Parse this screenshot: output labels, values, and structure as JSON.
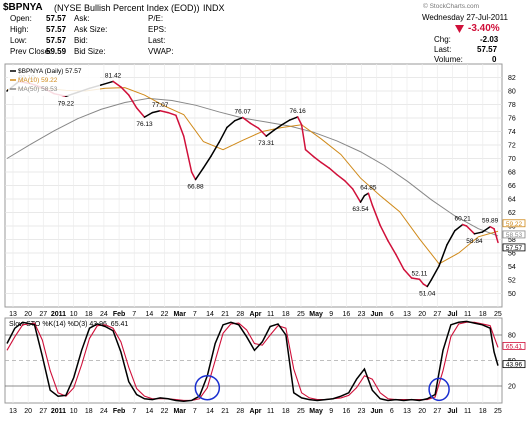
{
  "chart_data": [
    {
      "type": "line",
      "symbol": "$BPNYA",
      "title": "(NYSE Bullish Percent Index (EOD))",
      "exchange": "INDX",
      "watermark": "© StockCharts.com",
      "date_text": "Wednesday 27-Jul-2011",
      "quote": {
        "open_label": "Open:",
        "open": "57.57",
        "high_label": "High:",
        "high": "57.57",
        "low_label": "Low:",
        "low": "57.57",
        "prev_label": "Prev Close:",
        "prev": "59.59",
        "ask_label": "Ask:",
        "ask": "",
        "asksize_label": "Ask Size:",
        "asksize": "",
        "bid_label": "Bid:",
        "bid": "",
        "bidsize_label": "Bid Size:",
        "bidsize": "",
        "pe_label": "P/E:",
        "pe": "",
        "eps_label": "EPS:",
        "eps": "",
        "last_label": "Last:",
        "last": "",
        "vwap_label": "VWAP:",
        "vwap": "",
        "pct_change": "-3.40%",
        "chg_label": "Chg:",
        "chg": "-2.03",
        "last2_label": "Last:",
        "last2": "57.57",
        "volume_label": "Volume:",
        "volume": "0"
      },
      "legend": [
        {
          "text": "$BPNYA (Daily) 57.57",
          "color": "#000000"
        },
        {
          "text": "MA(10) 59.22",
          "color": "#d08a1a"
        },
        {
          "text": "MA(50) 58.53",
          "color": "#888888"
        }
      ],
      "ylim": [
        48,
        84
      ],
      "yticks": [
        50,
        52,
        54,
        56,
        58,
        60,
        62,
        64,
        66,
        68,
        70,
        72,
        74,
        76,
        78,
        80,
        82
      ],
      "x_tick_labels": [
        "13",
        "20",
        "27",
        "2011",
        "10",
        "18",
        "24",
        "Feb",
        "7",
        "14",
        "22",
        "Mar",
        "7",
        "14",
        "21",
        "28",
        "Apr",
        "11",
        "18",
        "25",
        "May",
        "9",
        "16",
        "23",
        "Jun",
        "6",
        "13",
        "20",
        "27",
        "Jul",
        "11",
        "18",
        "25"
      ],
      "right_labels": [
        "59.22",
        "58.53",
        "57.57"
      ],
      "series": [
        {
          "name": "$BPNYA (Daily) 57.57",
          "color": "#000000",
          "down_color": "#d0103a",
          "values": [
            [
              0,
              80
            ],
            [
              3,
              81.4
            ],
            [
              6,
              81.1
            ],
            [
              9,
              80.5
            ],
            [
              12,
              79.6
            ],
            [
              15,
              79.22
            ],
            [
              18,
              79.8
            ],
            [
              21,
              80.4
            ],
            [
              24,
              80.9
            ],
            [
              27,
              81.42
            ],
            [
              29,
              80.6
            ],
            [
              31,
              79.4
            ],
            [
              33,
              77.5
            ],
            [
              35,
              76.13
            ],
            [
              37,
              76.8
            ],
            [
              39,
              77.07
            ],
            [
              41,
              76.8
            ],
            [
              43,
              76.4
            ],
            [
              45,
              73.3
            ],
            [
              47,
              68.0
            ],
            [
              48,
              66.88
            ],
            [
              50,
              68.6
            ],
            [
              52,
              70.4
            ],
            [
              54,
              72.4
            ],
            [
              56,
              74.6
            ],
            [
              58,
              75.6
            ],
            [
              60,
              76.07
            ],
            [
              62,
              75.2
            ],
            [
              64,
              74.5
            ],
            [
              66,
              73.31
            ],
            [
              68,
              74.2
            ],
            [
              70,
              75.0
            ],
            [
              72,
              75.7
            ],
            [
              74,
              76.16
            ],
            [
              75,
              75.0
            ],
            [
              76,
              71.3
            ],
            [
              78,
              70.3
            ],
            [
              80,
              69.4
            ],
            [
              82,
              68.6
            ],
            [
              84,
              67.6
            ],
            [
              86,
              66.7
            ],
            [
              88,
              65.5
            ],
            [
              90,
              63.54
            ],
            [
              91,
              64.5
            ],
            [
              92,
              64.85
            ],
            [
              93,
              63.1
            ],
            [
              95,
              60.1
            ],
            [
              97,
              57.8
            ],
            [
              99,
              55.8
            ],
            [
              101,
              53.6
            ],
            [
              103,
              52.3
            ],
            [
              105,
              52.11
            ],
            [
              106,
              51.4
            ],
            [
              107,
              51.04
            ],
            [
              108,
              52.0
            ],
            [
              110,
              54.1
            ],
            [
              112,
              57.2
            ],
            [
              114,
              59.3
            ],
            [
              116,
              60.21
            ],
            [
              117,
              60.0
            ],
            [
              119,
              58.84
            ],
            [
              121,
              59.1
            ],
            [
              123,
              59.89
            ],
            [
              124,
              59.59
            ],
            [
              125,
              57.57
            ]
          ]
        },
        {
          "name": "MA(10) 59.22",
          "color": "#d08a1a",
          "values": [
            [
              0,
              80.2
            ],
            [
              5,
              80.4
            ],
            [
              10,
              80.4
            ],
            [
              15,
              80.1
            ],
            [
              20,
              80.0
            ],
            [
              25,
              80.4
            ],
            [
              30,
              80.5
            ],
            [
              35,
              79.4
            ],
            [
              40,
              77.8
            ],
            [
              45,
              76.5
            ],
            [
              50,
              72.5
            ],
            [
              55,
              71.3
            ],
            [
              60,
              72.7
            ],
            [
              65,
              74.0
            ],
            [
              70,
              74.6
            ],
            [
              75,
              75.0
            ],
            [
              80,
              72.9
            ],
            [
              85,
              70.6
            ],
            [
              90,
              67.1
            ],
            [
              95,
              64.5
            ],
            [
              100,
              62.1
            ],
            [
              105,
              58.1
            ],
            [
              110,
              54.4
            ],
            [
              115,
              56.0
            ],
            [
              120,
              58.4
            ],
            [
              125,
              59.22
            ]
          ]
        },
        {
          "name": "MA(50) 58.53",
          "color": "#888888",
          "values": [
            [
              0,
              70.0
            ],
            [
              6,
              72.1
            ],
            [
              12,
              74.1
            ],
            [
              18,
              75.9
            ],
            [
              24,
              77.3
            ],
            [
              30,
              78.3
            ],
            [
              36,
              78.9
            ],
            [
              42,
              78.6
            ],
            [
              48,
              77.9
            ],
            [
              54,
              76.9
            ],
            [
              60,
              76.0
            ],
            [
              66,
              75.4
            ],
            [
              72,
              74.8
            ],
            [
              78,
              73.9
            ],
            [
              84,
              72.6
            ],
            [
              90,
              71.0
            ],
            [
              96,
              69.0
            ],
            [
              102,
              66.6
            ],
            [
              108,
              63.9
            ],
            [
              114,
              61.5
            ],
            [
              120,
              59.6
            ],
            [
              125,
              58.53
            ]
          ]
        }
      ]
    },
    {
      "type": "line",
      "title": "Slow STO %K(14) %D(3) 43.96, 65.41",
      "ylim": [
        0,
        100
      ],
      "yticks": [
        20,
        50,
        80
      ],
      "right_labels": [
        "65.41",
        "43.96"
      ],
      "x_tick_labels": [
        "13",
        "20",
        "27",
        "2011",
        "10",
        "18",
        "24",
        "Feb",
        "7",
        "14",
        "22",
        "Mar",
        "7",
        "14",
        "21",
        "28",
        "Apr",
        "11",
        "18",
        "25",
        "May",
        "9",
        "16",
        "23",
        "Jun",
        "6",
        "13",
        "20",
        "27",
        "Jul",
        "11",
        "18",
        "25"
      ],
      "series": [
        {
          "name": "%K(14)",
          "color": "#000000",
          "values": [
            [
              0,
              70
            ],
            [
              2,
              88
            ],
            [
              4,
              95
            ],
            [
              7,
              92
            ],
            [
              9,
              55
            ],
            [
              11,
              15
            ],
            [
              13,
              8
            ],
            [
              15,
              9
            ],
            [
              17,
              30
            ],
            [
              19,
              62
            ],
            [
              21,
              88
            ],
            [
              23,
              93
            ],
            [
              25,
              90
            ],
            [
              27,
              85
            ],
            [
              29,
              60
            ],
            [
              31,
              25
            ],
            [
              33,
              10
            ],
            [
              35,
              5
            ],
            [
              37,
              4
            ],
            [
              39,
              6
            ],
            [
              41,
              5
            ],
            [
              43,
              3
            ],
            [
              45,
              2
            ],
            [
              47,
              3
            ],
            [
              49,
              8
            ],
            [
              51,
              32
            ],
            [
              53,
              70
            ],
            [
              55,
              92
            ],
            [
              57,
              95
            ],
            [
              59,
              92
            ],
            [
              61,
              78
            ],
            [
              63,
              62
            ],
            [
              65,
              72
            ],
            [
              67,
              90
            ],
            [
              69,
              93
            ],
            [
              71,
              80
            ],
            [
              73,
              12
            ],
            [
              75,
              6
            ],
            [
              77,
              4
            ],
            [
              79,
              3
            ],
            [
              81,
              4
            ],
            [
              83,
              5
            ],
            [
              85,
              8
            ],
            [
              87,
              12
            ],
            [
              89,
              28
            ],
            [
              91,
              40
            ],
            [
              93,
              15
            ],
            [
              95,
              5
            ],
            [
              97,
              3
            ],
            [
              99,
              4
            ],
            [
              101,
              3
            ],
            [
              103,
              4
            ],
            [
              105,
              3
            ],
            [
              107,
              5
            ],
            [
              109,
              10
            ],
            [
              111,
              62
            ],
            [
              113,
              92
            ],
            [
              115,
              95
            ],
            [
              117,
              96
            ],
            [
              119,
              94
            ],
            [
              121,
              92
            ],
            [
              123,
              88
            ],
            [
              124,
              60
            ],
            [
              125,
              43.96
            ]
          ]
        },
        {
          "name": "%D(3)",
          "color": "#d0103a",
          "values": [
            [
              0,
              62
            ],
            [
              2,
              78
            ],
            [
              4,
              92
            ],
            [
              7,
              94
            ],
            [
              9,
              74
            ],
            [
              11,
              38
            ],
            [
              13,
              12
            ],
            [
              15,
              8
            ],
            [
              17,
              18
            ],
            [
              19,
              45
            ],
            [
              21,
              76
            ],
            [
              23,
              91
            ],
            [
              25,
              92
            ],
            [
              27,
              88
            ],
            [
              29,
              72
            ],
            [
              31,
              42
            ],
            [
              33,
              17
            ],
            [
              35,
              8
            ],
            [
              37,
              5
            ],
            [
              39,
              5
            ],
            [
              41,
              5
            ],
            [
              43,
              4
            ],
            [
              45,
              3
            ],
            [
              47,
              3
            ],
            [
              49,
              5
            ],
            [
              51,
              18
            ],
            [
              53,
              50
            ],
            [
              55,
              82
            ],
            [
              57,
              93
            ],
            [
              59,
              94
            ],
            [
              61,
              86
            ],
            [
              63,
              70
            ],
            [
              65,
              68
            ],
            [
              67,
              80
            ],
            [
              69,
              91
            ],
            [
              71,
              88
            ],
            [
              73,
              40
            ],
            [
              75,
              12
            ],
            [
              77,
              6
            ],
            [
              79,
              4
            ],
            [
              81,
              4
            ],
            [
              83,
              5
            ],
            [
              85,
              6
            ],
            [
              87,
              9
            ],
            [
              89,
              18
            ],
            [
              91,
              32
            ],
            [
              93,
              28
            ],
            [
              95,
              12
            ],
            [
              97,
              5
            ],
            [
              99,
              4
            ],
            [
              101,
              4
            ],
            [
              103,
              4
            ],
            [
              105,
              4
            ],
            [
              107,
              4
            ],
            [
              109,
              7
            ],
            [
              111,
              38
            ],
            [
              113,
              78
            ],
            [
              115,
              93
            ],
            [
              117,
              95
            ],
            [
              119,
              95
            ],
            [
              121,
              93
            ],
            [
              123,
              91
            ],
            [
              124,
              78
            ],
            [
              125,
              65.41
            ]
          ]
        }
      ]
    }
  ]
}
